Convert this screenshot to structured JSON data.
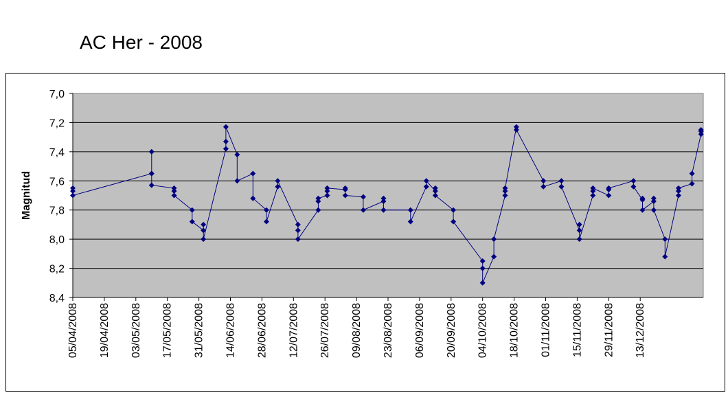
{
  "chart_data": {
    "type": "line",
    "title": "AC Her - 2008",
    "xlabel": "",
    "ylabel": "Magnitud",
    "x_range": [
      "05/04/2008",
      "31/12/2008"
    ],
    "ylim": [
      7.0,
      8.4
    ],
    "y_reversed": true,
    "y_ticks": [
      "7,0",
      "7,2",
      "7,4",
      "7,6",
      "7,8",
      "8,0",
      "8,2",
      "8,4"
    ],
    "x_ticks": [
      "05/04/2008",
      "19/04/2008",
      "03/05/2008",
      "17/05/2008",
      "31/05/2008",
      "14/06/2008",
      "28/06/2008",
      "12/07/2008",
      "26/07/2008",
      "09/08/2008",
      "23/08/2008",
      "06/09/2008",
      "20/09/2008",
      "04/10/2008",
      "18/10/2008",
      "01/11/2008",
      "15/11/2008",
      "29/11/2008",
      "13/12/2008"
    ],
    "grid": true,
    "legend": "none",
    "plot_background": "#c0c0c0",
    "series_color": "#000080",
    "series": [
      {
        "points": [
          [
            "05/04/2008",
            7.65
          ],
          [
            "05/04/2008",
            7.67
          ],
          [
            "05/04/2008",
            7.7
          ],
          [
            "10/05/2008",
            7.55
          ],
          [
            "10/05/2008",
            7.4
          ],
          [
            "10/05/2008",
            7.55
          ],
          [
            "10/05/2008",
            7.63
          ],
          [
            "20/05/2008",
            7.65
          ],
          [
            "20/05/2008",
            7.67
          ],
          [
            "20/05/2008",
            7.7
          ],
          [
            "28/05/2008",
            7.8
          ],
          [
            "28/05/2008",
            7.88
          ],
          [
            "02/06/2008",
            7.94
          ],
          [
            "02/06/2008",
            7.9
          ],
          [
            "02/06/2008",
            8.0
          ],
          [
            "12/06/2008",
            7.38
          ],
          [
            "12/06/2008",
            7.33
          ],
          [
            "12/06/2008",
            7.23
          ],
          [
            "17/06/2008",
            7.42
          ],
          [
            "17/06/2008",
            7.6
          ],
          [
            "24/06/2008",
            7.55
          ],
          [
            "24/06/2008",
            7.72
          ],
          [
            "30/06/2008",
            7.8
          ],
          [
            "30/06/2008",
            7.88
          ],
          [
            "05/07/2008",
            7.64
          ],
          [
            "05/07/2008",
            7.6
          ],
          [
            "14/07/2008",
            7.9
          ],
          [
            "14/07/2008",
            7.94
          ],
          [
            "14/07/2008",
            8.0
          ],
          [
            "23/07/2008",
            7.8
          ],
          [
            "23/07/2008",
            7.74
          ],
          [
            "23/07/2008",
            7.72
          ],
          [
            "27/07/2008",
            7.7
          ],
          [
            "27/07/2008",
            7.67
          ],
          [
            "27/07/2008",
            7.65
          ],
          [
            "04/08/2008",
            7.66
          ],
          [
            "04/08/2008",
            7.65
          ],
          [
            "04/08/2008",
            7.7
          ],
          [
            "12/08/2008",
            7.71
          ],
          [
            "12/08/2008",
            7.8
          ],
          [
            "21/08/2008",
            7.74
          ],
          [
            "21/08/2008",
            7.72
          ],
          [
            "21/08/2008",
            7.8
          ],
          [
            "02/09/2008",
            7.8
          ],
          [
            "02/09/2008",
            7.88
          ],
          [
            "09/09/2008",
            7.64
          ],
          [
            "09/09/2008",
            7.6
          ],
          [
            "13/09/2008",
            7.67
          ],
          [
            "13/09/2008",
            7.65
          ],
          [
            "13/09/2008",
            7.7
          ],
          [
            "21/09/2008",
            7.8
          ],
          [
            "21/09/2008",
            7.88
          ],
          [
            "04/10/2008",
            8.15
          ],
          [
            "04/10/2008",
            8.2
          ],
          [
            "04/10/2008",
            8.3
          ],
          [
            "09/10/2008",
            8.12
          ],
          [
            "09/10/2008",
            8.0
          ],
          [
            "14/10/2008",
            7.7
          ],
          [
            "14/10/2008",
            7.67
          ],
          [
            "14/10/2008",
            7.65
          ],
          [
            "19/10/2008",
            7.23
          ],
          [
            "19/10/2008",
            7.25
          ],
          [
            "31/10/2008",
            7.6
          ],
          [
            "31/10/2008",
            7.64
          ],
          [
            "08/11/2008",
            7.6
          ],
          [
            "08/11/2008",
            7.64
          ],
          [
            "16/11/2008",
            7.94
          ],
          [
            "16/11/2008",
            7.9
          ],
          [
            "16/11/2008",
            8.0
          ],
          [
            "22/11/2008",
            7.7
          ],
          [
            "22/11/2008",
            7.67
          ],
          [
            "22/11/2008",
            7.65
          ],
          [
            "29/11/2008",
            7.7
          ],
          [
            "29/11/2008",
            7.66
          ],
          [
            "29/11/2008",
            7.65
          ],
          [
            "10/12/2008",
            7.6
          ],
          [
            "10/12/2008",
            7.64
          ],
          [
            "14/12/2008",
            7.73
          ],
          [
            "14/12/2008",
            7.72
          ],
          [
            "14/12/2008",
            7.8
          ],
          [
            "19/12/2008",
            7.74
          ],
          [
            "19/12/2008",
            7.72
          ],
          [
            "19/12/2008",
            7.8
          ],
          [
            "24/12/2008",
            8.0
          ],
          [
            "24/12/2008",
            8.12
          ],
          [
            "30/12/2008",
            7.7
          ],
          [
            "30/12/2008",
            7.67
          ],
          [
            "30/12/2008",
            7.65
          ],
          [
            "05/01/2009",
            7.62
          ],
          [
            "05/01/2009",
            7.55
          ],
          [
            "09/01/2009",
            7.28
          ],
          [
            "09/01/2009",
            7.26
          ],
          [
            "09/01/2009",
            7.25
          ]
        ]
      }
    ]
  }
}
